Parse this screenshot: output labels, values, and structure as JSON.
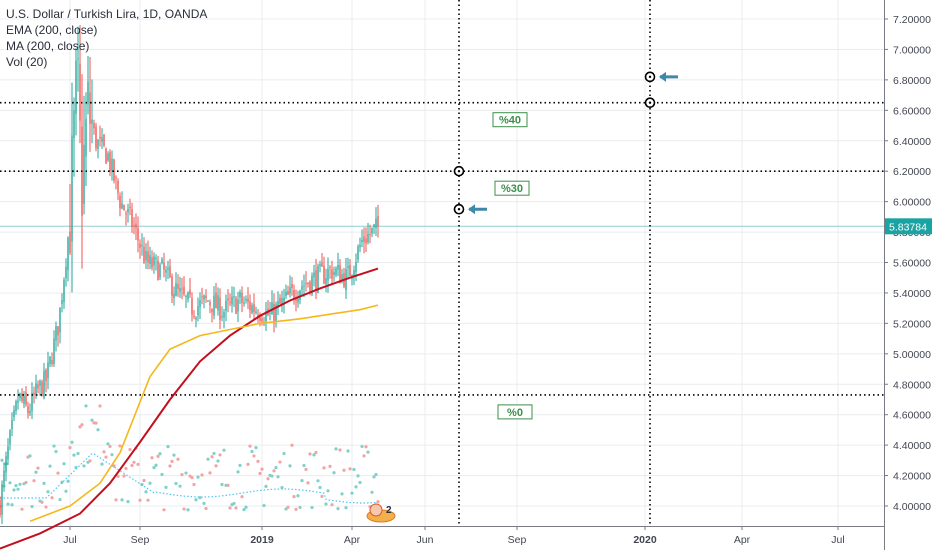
{
  "legend": {
    "title": "U.S. Dollar / Turkish Lira, 1D, OANDA",
    "ind1": "EMA (200, close)",
    "ind2": "MA (200, close)",
    "ind3": "Vol (20)"
  },
  "colors": {
    "up": "#26a69a",
    "down": "#ef5350",
    "ema": "#c2101e",
    "ma": "#f5b81b",
    "vol_up": "#7fd1c8",
    "vol_down": "#f4a3a3",
    "vol_ma": "#4fc3f7",
    "grid": "#e9ecef",
    "axis_text": "#434651",
    "label_green": "#3c8f4a",
    "arrow": "#3f88a8",
    "price_tag": "#1aa3a3"
  },
  "chart_data": {
    "type": "candlestick",
    "title": "U.S. Dollar / Turkish Lira, 1D, OANDA",
    "x_ticks": [
      "Jul",
      "Sep",
      "2019",
      "Apr",
      "Jun",
      "Sep",
      "2020",
      "Apr",
      "Jul"
    ],
    "y_ticks": [
      "4.00000",
      "4.20000",
      "4.40000",
      "4.60000",
      "4.80000",
      "5.00000",
      "5.20000",
      "5.40000",
      "5.60000",
      "5.80000",
      "6.00000",
      "6.20000",
      "6.40000",
      "6.60000",
      "6.80000",
      "7.00000",
      "7.20000"
    ],
    "ylim": [
      3.8,
      7.3
    ],
    "last_price": "5.83784",
    "last_price_value": 5.83784,
    "price_path": [
      [
        0,
        4.02
      ],
      [
        0.05,
        4.35
      ],
      [
        0.12,
        4.72
      ],
      [
        0.18,
        4.62
      ],
      [
        0.24,
        4.75
      ],
      [
        0.3,
        4.83
      ],
      [
        0.38,
        5.2
      ],
      [
        0.45,
        5.85
      ],
      [
        0.5,
        6.8
      ],
      [
        0.53,
        6.1
      ],
      [
        0.57,
        6.6
      ],
      [
        0.62,
        6.4
      ],
      [
        0.7,
        6.3
      ],
      [
        0.78,
        6.0
      ],
      [
        0.86,
        5.85
      ],
      [
        0.95,
        5.6
      ],
      [
        1.05,
        5.55
      ],
      [
        1.15,
        5.4
      ],
      [
        1.25,
        5.3
      ],
      [
        1.35,
        5.35
      ],
      [
        1.45,
        5.28
      ],
      [
        1.55,
        5.35
      ],
      [
        1.65,
        5.3
      ],
      [
        1.75,
        5.25
      ],
      [
        1.85,
        5.35
      ],
      [
        1.95,
        5.45
      ],
      [
        2.05,
        5.5
      ],
      [
        2.15,
        5.55
      ],
      [
        2.25,
        5.5
      ],
      [
        2.35,
        5.75
      ],
      [
        2.45,
        5.83
      ]
    ],
    "horizontal_levels": [
      {
        "label": "%40",
        "value": 6.65
      },
      {
        "label": "%30",
        "value": 6.2
      },
      {
        "label": "%0",
        "value": 4.73
      }
    ],
    "vertical_markers": [
      {
        "x_label": "Jun",
        "points": [
          6.2,
          5.95
        ],
        "arrow_at": 5.95
      },
      {
        "x_label": "2020",
        "points": [
          6.82,
          6.65
        ],
        "arrow_at": 6.82
      }
    ],
    "series": [
      {
        "name": "EMA (200, close)"
      },
      {
        "name": "MA (200, close)"
      },
      {
        "name": "Vol (20)"
      }
    ],
    "badge": "2"
  }
}
